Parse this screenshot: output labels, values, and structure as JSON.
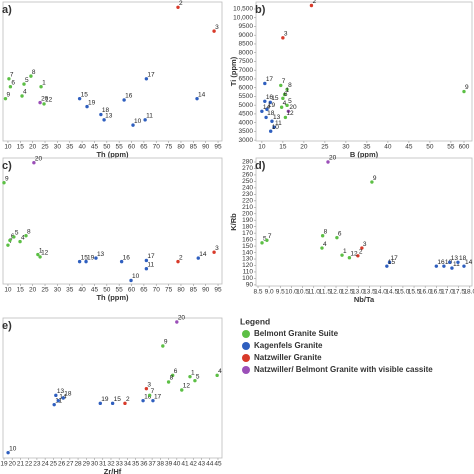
{
  "legend": {
    "title": "Legend",
    "entries": [
      {
        "name": "Belmont Granite Suite",
        "color": "#5cbf45"
      },
      {
        "name": "Kagenfels Granite",
        "color": "#2f5fbf"
      },
      {
        "name": "Natzwiller Granite",
        "color": "#d83a2a"
      },
      {
        "name": "Natzwiller/ Belmont Granite with visible cassite",
        "color": "#9b4fb8"
      }
    ]
  },
  "chart_data": [
    {
      "type": "scatter",
      "panel_label": "a)",
      "xlabel": "Th (ppm)",
      "xlim": [
        8,
        96.6
      ],
      "ylim": [
        -3,
        102
      ],
      "xticks": [
        10,
        15,
        20,
        25,
        30,
        35,
        40,
        45,
        50,
        55,
        60,
        65,
        70,
        75,
        80,
        85,
        90,
        95
      ],
      "points": {
        "labels": [
          "2",
          "3",
          "7",
          "6",
          "9",
          "5",
          "8",
          "1",
          "4",
          "20",
          "12",
          "15",
          "19",
          "18",
          "13",
          "16",
          "10",
          "11",
          "17",
          "14"
        ],
        "group": [
          2,
          2,
          0,
          0,
          0,
          0,
          0,
          0,
          0,
          3,
          0,
          1,
          1,
          1,
          1,
          1,
          1,
          1,
          1,
          1
        ],
        "x": [
          78.8,
          93.4,
          10.4,
          11,
          9,
          16.5,
          19.3,
          23.4,
          15.7,
          23,
          24.6,
          39,
          42,
          47.6,
          48.9,
          57,
          60.6,
          65.5,
          66,
          86.5
        ],
        "y": [
          98,
          80,
          44,
          38,
          29,
          40,
          46,
          38,
          31,
          26,
          25,
          29,
          23,
          17,
          13,
          28,
          9,
          13,
          44,
          29
        ]
      }
    },
    {
      "type": "scatter",
      "panel_label": "b)",
      "xlabel": "B (ppm)",
      "ylabel": "Ti (ppm)",
      "xlim": [
        8.6,
        602
      ],
      "xbreak": [
        55.5,
        598
      ],
      "ylim": [
        2950,
        10900
      ],
      "xticks": [
        10,
        15,
        20,
        25,
        30,
        35,
        40,
        45,
        50,
        55,
        600
      ],
      "yticks": [
        3000,
        3500,
        4000,
        4500,
        5000,
        5500,
        6000,
        6500,
        7000,
        7500,
        8000,
        8500,
        9000,
        9500,
        {
          "value": 10000,
          "label": "10,000"
        },
        {
          "value": 10500,
          "label": "10,500"
        }
      ],
      "points": {
        "labels": [
          "2",
          "3",
          "17",
          "7",
          "8",
          "1",
          "6",
          "5",
          "16",
          "15",
          "19",
          "4",
          "20",
          "14",
          "18",
          "12",
          "13",
          "11",
          "10",
          "9"
        ],
        "group": [
          2,
          2,
          1,
          0,
          0,
          0,
          0,
          0,
          1,
          1,
          1,
          0,
          3,
          1,
          1,
          0,
          1,
          1,
          1,
          0
        ],
        "x": [
          21.8,
          15,
          10.7,
          14.5,
          16,
          15.4,
          15,
          16,
          10.7,
          12,
          11.2,
          14.7,
          16.3,
          10,
          11,
          15.6,
          12.4,
          12.9,
          12.1,
          600
        ],
        "y": [
          10700,
          8850,
          6240,
          6130,
          5900,
          5610,
          5390,
          4990,
          5220,
          5160,
          4760,
          4880,
          4650,
          4650,
          4300,
          4300,
          4080,
          3740,
          3510,
          5780
        ]
      }
    },
    {
      "type": "scatter",
      "panel_label": "c)",
      "xlabel": "Th (ppm)",
      "xlim": [
        8,
        96.6
      ],
      "ylim": [
        -5,
        102
      ],
      "xticks": [
        10,
        15,
        20,
        25,
        30,
        35,
        40,
        45,
        50,
        55,
        60,
        65,
        70,
        75,
        80,
        85,
        90,
        95
      ],
      "points": {
        "labels": [
          "20",
          "9",
          "7",
          "6",
          "5",
          "4",
          "8",
          "1",
          "12",
          "15",
          "19",
          "13",
          "16",
          "10",
          "17",
          "11",
          "2",
          "14",
          "3"
        ],
        "group": [
          3,
          0,
          0,
          0,
          0,
          0,
          0,
          0,
          0,
          1,
          1,
          1,
          1,
          1,
          1,
          1,
          2,
          1,
          2
        ],
        "x": [
          20.5,
          8.4,
          10,
          10.8,
          12.4,
          14.9,
          17.3,
          22.1,
          23,
          39,
          41.6,
          45.6,
          56,
          59.8,
          66,
          66,
          78.8,
          87,
          93.4
        ],
        "y": [
          98,
          81,
          28,
          32,
          35,
          31,
          36,
          20,
          18,
          14,
          14,
          17,
          14,
          -2,
          15,
          8,
          14,
          17,
          22
        ]
      }
    },
    {
      "type": "scatter",
      "panel_label": "d)",
      "xlabel": "Nb/Ta",
      "ylabel": "K/Rb",
      "xlim": [
        8.41,
        18.1
      ],
      "ylim": [
        88.3,
        286.2
      ],
      "xticks": [
        8.5,
        {
          "value": 9,
          "label": "9.0"
        },
        9.5,
        {
          "value": 10,
          "label": "10.0"
        },
        10.5,
        {
          "value": 11,
          "label": "11.0"
        },
        11.5,
        {
          "value": 12,
          "label": "12.0"
        },
        12.5,
        {
          "value": 13,
          "label": "13.0"
        },
        13.5,
        {
          "value": 14,
          "label": "14.0"
        },
        14.5,
        {
          "value": 15,
          "label": "15.0"
        },
        15.5,
        {
          "value": 16,
          "label": "16.0"
        },
        16.5,
        {
          "value": 17,
          "label": "17.0"
        },
        17.5,
        {
          "value": 18,
          "label": "18.0"
        }
      ],
      "yticks": [
        90,
        100,
        110,
        120,
        130,
        140,
        150,
        160,
        170,
        180,
        190,
        200,
        210,
        220,
        230,
        240,
        250,
        260,
        270,
        280
      ],
      "points": {
        "labels": [
          "20",
          "9",
          "5",
          "7",
          "8",
          "6",
          "4",
          "3",
          "2",
          "1",
          "12",
          "17",
          "15",
          "16",
          "10",
          "11",
          "13",
          "18",
          "14"
        ],
        "group": [
          3,
          0,
          0,
          0,
          0,
          0,
          0,
          2,
          2,
          0,
          0,
          1,
          1,
          1,
          1,
          1,
          1,
          1,
          1
        ],
        "x": [
          11.64,
          13.61,
          8.68,
          8.9,
          11.4,
          12.04,
          11.37,
          13.16,
          12.98,
          12.27,
          12.6,
          14.4,
          14.28,
          16.5,
          16.84,
          17.2,
          17.1,
          17.47,
          17.74
        ],
        "y": [
          280,
          249,
          155,
          159,
          166,
          163,
          147,
          147,
          135,
          136,
          132,
          125,
          119,
          119,
          119,
          116,
          125,
          125,
          119
        ]
      }
    },
    {
      "type": "scatter",
      "panel_label": "e)",
      "xlabel": "Zr/Hf",
      "xlim": [
        18.88,
        45.49
      ],
      "ylim": [
        -3,
        102
      ],
      "xticks": [
        19,
        20,
        21,
        22,
        23,
        24,
        25,
        26,
        27,
        28,
        29,
        30,
        31,
        32,
        33,
        34,
        35,
        36,
        37,
        38,
        39,
        40,
        41,
        42,
        43,
        44,
        45
      ],
      "points": {
        "labels": [
          "20",
          "9",
          "10",
          "13",
          "11",
          "14",
          "18",
          "19",
          "15",
          "2",
          "3",
          "16",
          "17",
          "7",
          "12",
          "6",
          "8",
          "1",
          "5",
          "4"
        ],
        "group": [
          3,
          0,
          1,
          1,
          1,
          1,
          1,
          1,
          1,
          2,
          2,
          1,
          1,
          0,
          0,
          0,
          0,
          0,
          0,
          0
        ],
        "x": [
          40,
          38.3,
          19.5,
          25.3,
          25.1,
          25.6,
          26.2,
          30.7,
          32.2,
          33.7,
          36.3,
          35.9,
          37.1,
          36.7,
          40.6,
          39.5,
          39,
          41.6,
          42.2,
          44.9
        ],
        "y": [
          99,
          81,
          1,
          44,
          37,
          40,
          42,
          38,
          38,
          38,
          49,
          40,
          40,
          44,
          48,
          59,
          54,
          58,
          55,
          59
        ]
      }
    }
  ]
}
